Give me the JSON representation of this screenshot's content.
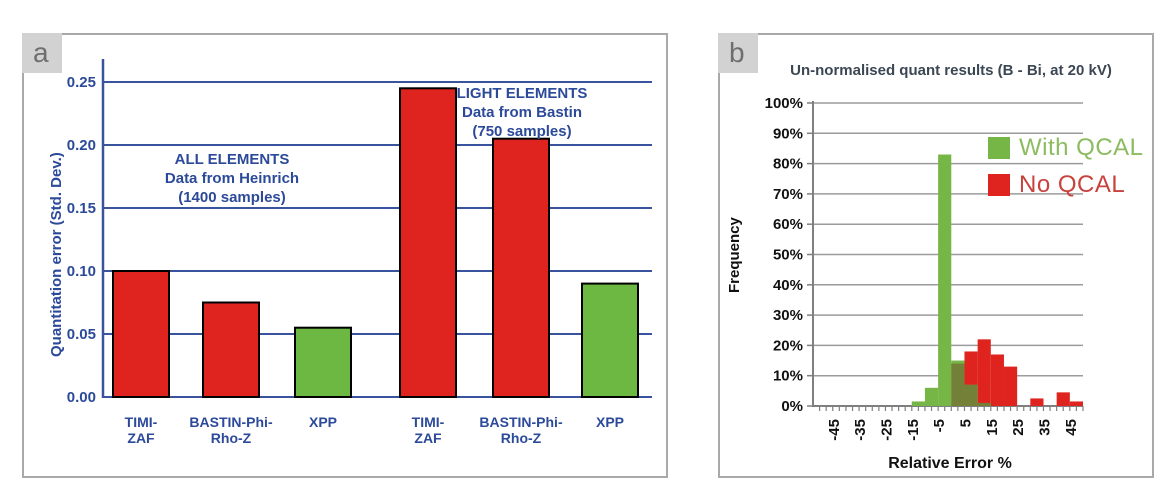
{
  "figure": {
    "panels": [
      {
        "corner_label": "a"
      },
      {
        "corner_label": "b"
      }
    ]
  },
  "chart_data": [
    {
      "type": "bar",
      "panel": "a",
      "ylabel": "Quantitation error (Std. Dev.)",
      "ylim": [
        0,
        0.27
      ],
      "ytick_values": [
        0,
        0.05,
        0.1,
        0.15,
        0.2,
        0.25
      ],
      "ytick_labels": [
        "0.00",
        "0.05",
        "0.10",
        "0.15",
        "0.20",
        "0.25"
      ],
      "grid": true,
      "categories": [
        "TIMI-ZAF",
        "BASTIN-Phi-Rho-Z",
        "XPP",
        "TIMI-ZAF",
        "BASTIN-Phi-Rho-Z",
        "XPP"
      ],
      "category_lines": [
        [
          "TIMI-",
          "ZAF"
        ],
        [
          "BASTIN-Phi-",
          "Rho-Z"
        ],
        [
          "XPP"
        ],
        [
          "TIMI-",
          "ZAF"
        ],
        [
          "BASTIN-Phi-",
          "Rho-Z"
        ],
        [
          "XPP"
        ]
      ],
      "values": [
        0.1,
        0.075,
        0.055,
        0.245,
        0.205,
        0.09
      ],
      "bar_color_names": [
        "red",
        "red",
        "green",
        "red",
        "red",
        "green"
      ],
      "colors": {
        "red": "#df241f",
        "green": "#6db842",
        "axis": "#3a539e",
        "text": "#2c4a9a",
        "bar_outline": "#000000"
      },
      "annotations": [
        {
          "group": "left",
          "lines": [
            "ALL ELEMENTS",
            "Data from Heinrich",
            "(1400 samples)"
          ]
        },
        {
          "group": "right",
          "lines": [
            "LIGHT ELEMENTS",
            "Data from Bastin",
            "(750 samples)"
          ]
        }
      ]
    },
    {
      "type": "histogram-overlay",
      "panel": "b",
      "title": "Un-normalised quant results (B - Bi, at 20 kV)",
      "xlabel": "Relative Error %",
      "ylabel": "Frequency",
      "ylim_pct": [
        0,
        100
      ],
      "ytick_labels": [
        "0%",
        "10%",
        "20%",
        "30%",
        "40%",
        "50%",
        "60%",
        "70%",
        "80%",
        "90%",
        "100%"
      ],
      "xlim": [
        -52.5,
        50
      ],
      "xtick_step": 2.5,
      "xtick_label_values": [
        -45,
        -35,
        -25,
        -15,
        -5,
        5,
        15,
        25,
        35,
        45
      ],
      "xtick_labels": [
        "-45",
        "-35",
        "-25",
        "-15",
        "-5",
        "5",
        "15",
        "25",
        "35",
        "45"
      ],
      "bin_width": 5,
      "series": [
        {
          "name": "With QCAL",
          "color": "#76b647",
          "legend_text_color": "#8cbb60",
          "bins": [
            {
              "center": -12.5,
              "pct": 1.5
            },
            {
              "center": -7.5,
              "pct": 6
            },
            {
              "center": -2.5,
              "pct": 83
            },
            {
              "center": 2.5,
              "pct": 15
            },
            {
              "center": 7.5,
              "pct": 7
            },
            {
              "center": 12.5,
              "pct": 1
            }
          ]
        },
        {
          "name": "No QCAL",
          "color": "#df241f",
          "legend_text_color": "#c8423e",
          "bins": [
            {
              "center": 2.5,
              "pct": 14
            },
            {
              "center": 7.5,
              "pct": 18
            },
            {
              "center": 12.5,
              "pct": 22
            },
            {
              "center": 17.5,
              "pct": 17
            },
            {
              "center": 22.5,
              "pct": 13
            },
            {
              "center": 32.5,
              "pct": 2.5
            },
            {
              "center": 42.5,
              "pct": 4.5
            },
            {
              "center": 47.5,
              "pct": 1.5
            }
          ]
        }
      ],
      "overlap_color": "#748038",
      "colors": {
        "grid": "#9b9b9b",
        "axis": "#7f7f7f",
        "text": "#111111",
        "title": "#3c4754"
      },
      "legend_position": "top-right"
    }
  ]
}
